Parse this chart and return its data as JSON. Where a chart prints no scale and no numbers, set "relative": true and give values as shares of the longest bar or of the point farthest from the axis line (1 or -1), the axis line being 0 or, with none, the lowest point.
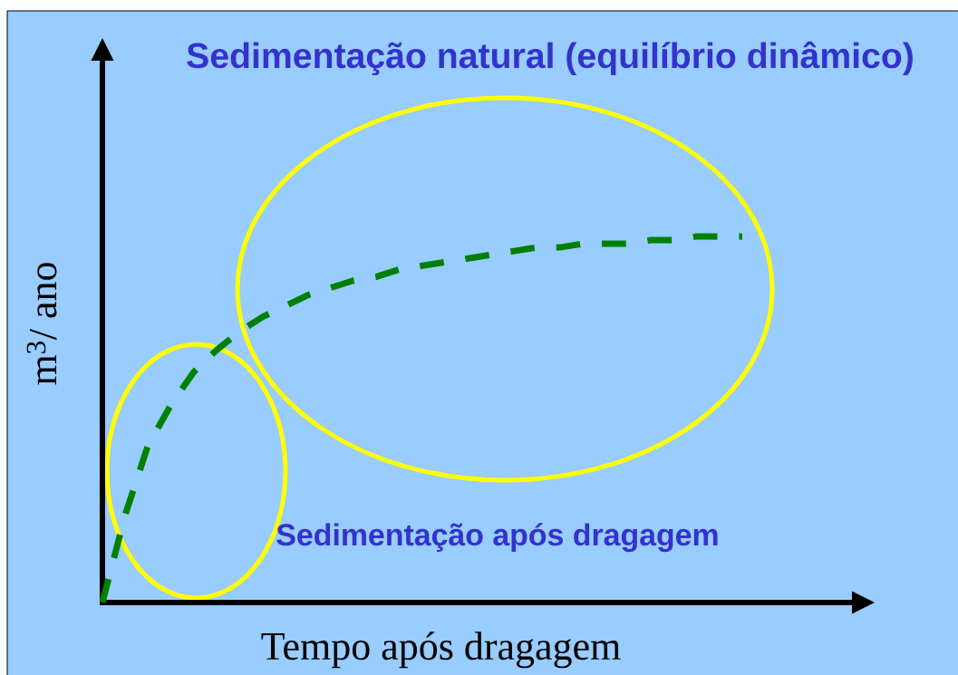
{
  "chart_data": {
    "type": "line",
    "relative": true,
    "xlabel": "Tempo após dragagem",
    "ylabel": "m$^{3}$/ ano",
    "annotations": [
      "Sedimentação natural (equilíbrio dinâmico)",
      "Sedimentação após dragagem"
    ],
    "categories": [
      null,
      null,
      null,
      null,
      null,
      null,
      null,
      null,
      null,
      null,
      null,
      null,
      null,
      null,
      null,
      null,
      null,
      null,
      null,
      null,
      null,
      null,
      null,
      null,
      null,
      null,
      null,
      null,
      null
    ],
    "values": [
      0,
      0.24,
      0.43,
      0.54,
      0.63,
      0.69,
      0.74,
      0.78,
      0.81,
      0.84,
      0.86,
      0.88,
      0.89,
      0.91,
      0.92,
      0.93,
      0.94,
      0.95,
      0.96,
      0.97,
      0.97,
      0.98,
      0.98,
      0.98,
      0.99,
      0.99,
      1.0,
      1.0,
      1.0
    ],
    "color": "#008000",
    "line_style": "dashed"
  }
}
